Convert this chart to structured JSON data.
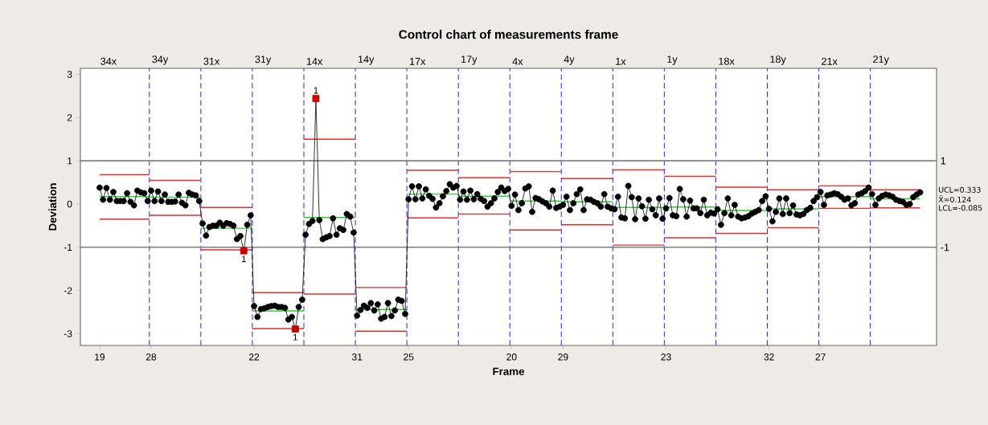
{
  "chart_data": {
    "type": "line",
    "title": "Control chart of measurements frame",
    "xlabel": "Frame",
    "ylabel": "Deviation",
    "categories": [
      "19",
      null,
      null,
      null,
      null,
      null,
      null,
      null,
      null,
      null,
      null,
      null,
      null,
      null,
      null,
      "28",
      null,
      null,
      null,
      null,
      null,
      null,
      null,
      null,
      null,
      null,
      null,
      null,
      null,
      null,
      null,
      null,
      null,
      null,
      null,
      null,
      null,
      null,
      null,
      null,
      null,
      null,
      null,
      null,
      null,
      "22",
      null,
      null,
      null,
      null,
      null,
      null,
      null,
      null,
      null,
      null,
      null,
      null,
      null,
      null,
      null,
      null,
      null,
      null,
      null,
      null,
      null,
      null,
      null,
      null,
      null,
      null,
      null,
      null,
      null,
      "31",
      null,
      null,
      null,
      null,
      null,
      null,
      null,
      null,
      null,
      null,
      null,
      null,
      null,
      null,
      "25",
      null,
      null,
      null,
      null,
      null,
      null,
      null,
      null,
      null,
      null,
      null,
      null,
      null,
      null,
      null,
      null,
      null,
      null,
      null,
      null,
      null,
      null,
      null,
      null,
      null,
      null,
      null,
      null,
      null,
      "20",
      null,
      null,
      null,
      null,
      null,
      null,
      null,
      null,
      null,
      null,
      null,
      null,
      null,
      null,
      "29",
      null,
      null,
      null,
      null,
      null,
      null,
      null,
      null,
      null,
      null,
      null,
      null,
      null,
      null,
      null,
      null,
      null,
      null,
      null,
      null,
      null,
      null,
      null,
      null,
      null,
      null,
      null,
      null,
      null,
      "23",
      null,
      null,
      null,
      null,
      null,
      null,
      null,
      null,
      null,
      null,
      null,
      null,
      null,
      null,
      null,
      null,
      null,
      null,
      null,
      null,
      null,
      null,
      null,
      null,
      null,
      null,
      null,
      null,
      null,
      "32",
      null,
      null,
      null,
      null,
      null,
      null,
      null,
      null,
      null,
      null,
      null,
      null,
      null,
      null,
      "27",
      null,
      null,
      null,
      null,
      null,
      null,
      null,
      null,
      null,
      null,
      null,
      null,
      null,
      null,
      null,
      null,
      null,
      null,
      null,
      null,
      null,
      null,
      null,
      null,
      null,
      null,
      null,
      null,
      null
    ],
    "series": [
      {
        "color": "#e03030",
        "marker": "none",
        "values": [
          0.68,
          0.68,
          0.68,
          0.68,
          0.68,
          0.68,
          0.68,
          0.68,
          0.68,
          0.68,
          0.68,
          0.68,
          0.68,
          0.68,
          0.68,
          0.55,
          0.55,
          0.55,
          0.55,
          0.55,
          0.55,
          0.55,
          0.55,
          0.55,
          0.55,
          0.55,
          0.55,
          0.55,
          0.55,
          0.55,
          -0.08,
          -0.08,
          -0.08,
          -0.08,
          -0.08,
          -0.08,
          -0.08,
          -0.08,
          -0.08,
          -0.08,
          -0.08,
          -0.08,
          -0.08,
          -0.08,
          -0.08,
          -2.05,
          -2.05,
          -2.05,
          -2.05,
          -2.05,
          -2.05,
          -2.05,
          -2.05,
          -2.05,
          -2.05,
          -2.05,
          -2.05,
          -2.05,
          -2.05,
          -2.05,
          1.5,
          1.5,
          1.5,
          1.5,
          1.5,
          1.5,
          1.5,
          1.5,
          1.5,
          1.5,
          1.5,
          1.5,
          1.5,
          1.5,
          1.5,
          -1.93,
          -1.93,
          -1.93,
          -1.93,
          -1.93,
          -1.93,
          -1.93,
          -1.93,
          -1.93,
          -1.93,
          -1.93,
          -1.93,
          -1.93,
          -1.93,
          -1.93,
          0.78,
          0.78,
          0.78,
          0.78,
          0.78,
          0.78,
          0.78,
          0.78,
          0.78,
          0.78,
          0.78,
          0.78,
          0.78,
          0.78,
          0.78,
          0.61,
          0.61,
          0.61,
          0.61,
          0.61,
          0.61,
          0.61,
          0.61,
          0.61,
          0.61,
          0.61,
          0.61,
          0.61,
          0.61,
          0.61,
          0.75,
          0.75,
          0.75,
          0.75,
          0.75,
          0.75,
          0.75,
          0.75,
          0.75,
          0.75,
          0.75,
          0.75,
          0.75,
          0.75,
          0.75,
          0.59,
          0.59,
          0.59,
          0.59,
          0.59,
          0.59,
          0.59,
          0.59,
          0.59,
          0.59,
          0.59,
          0.59,
          0.59,
          0.59,
          0.59,
          0.79,
          0.79,
          0.79,
          0.79,
          0.79,
          0.79,
          0.79,
          0.79,
          0.79,
          0.79,
          0.79,
          0.79,
          0.79,
          0.79,
          0.79,
          0.64,
          0.64,
          0.64,
          0.64,
          0.64,
          0.64,
          0.64,
          0.64,
          0.64,
          0.64,
          0.64,
          0.64,
          0.64,
          0.64,
          0.64,
          0.39,
          0.39,
          0.39,
          0.39,
          0.39,
          0.39,
          0.39,
          0.39,
          0.39,
          0.39,
          0.39,
          0.39,
          0.39,
          0.39,
          0.39,
          0.33,
          0.33,
          0.33,
          0.33,
          0.33,
          0.33,
          0.33,
          0.33,
          0.33,
          0.33,
          0.33,
          0.33,
          0.33,
          0.33,
          0.33,
          0.42,
          0.42,
          0.42,
          0.42,
          0.42,
          0.42,
          0.42,
          0.42,
          0.42,
          0.42,
          0.42,
          0.42,
          0.42,
          0.42,
          0.42,
          0.33,
          0.33,
          0.33,
          0.33,
          0.33,
          0.33,
          0.33,
          0.33,
          0.33,
          0.33,
          0.33,
          0.33,
          0.33,
          0.33,
          0.33
        ]
      },
      {
        "color": "#33cc33",
        "marker": "none",
        "values": [
          0.17,
          0.17,
          0.17,
          0.17,
          0.17,
          0.17,
          0.17,
          0.17,
          0.17,
          0.17,
          0.17,
          0.17,
          0.17,
          0.17,
          0.17,
          0.16,
          0.16,
          0.16,
          0.16,
          0.16,
          0.16,
          0.16,
          0.16,
          0.16,
          0.16,
          0.16,
          0.16,
          0.16,
          0.16,
          0.16,
          -0.56,
          -0.56,
          -0.56,
          -0.56,
          -0.56,
          -0.56,
          -0.56,
          -0.56,
          -0.56,
          -0.56,
          -0.56,
          -0.56,
          -0.56,
          -0.56,
          -0.56,
          -2.47,
          -2.47,
          -2.47,
          -2.47,
          -2.47,
          -2.47,
          -2.47,
          -2.47,
          -2.47,
          -2.47,
          -2.47,
          -2.47,
          -2.47,
          -2.47,
          -2.47,
          -0.31,
          -0.31,
          -0.31,
          -0.31,
          -0.31,
          -0.31,
          -0.31,
          -0.31,
          -0.31,
          -0.31,
          -0.31,
          -0.31,
          -0.31,
          -0.31,
          -0.31,
          -2.44,
          -2.44,
          -2.44,
          -2.44,
          -2.44,
          -2.44,
          -2.44,
          -2.44,
          -2.44,
          -2.44,
          -2.44,
          -2.44,
          -2.44,
          -2.44,
          -2.44,
          0.23,
          0.23,
          0.23,
          0.23,
          0.23,
          0.23,
          0.23,
          0.23,
          0.23,
          0.23,
          0.23,
          0.23,
          0.23,
          0.23,
          0.23,
          0.18,
          0.18,
          0.18,
          0.18,
          0.18,
          0.18,
          0.18,
          0.18,
          0.18,
          0.18,
          0.18,
          0.18,
          0.18,
          0.18,
          0.18,
          0.07,
          0.07,
          0.07,
          0.07,
          0.07,
          0.07,
          0.07,
          0.07,
          0.07,
          0.07,
          0.07,
          0.07,
          0.07,
          0.07,
          0.07,
          0.05,
          0.05,
          0.05,
          0.05,
          0.05,
          0.05,
          0.05,
          0.05,
          0.05,
          0.05,
          0.05,
          0.05,
          0.05,
          0.05,
          0.05,
          -0.08,
          -0.08,
          -0.08,
          -0.08,
          -0.08,
          -0.08,
          -0.08,
          -0.08,
          -0.08,
          -0.08,
          -0.08,
          -0.08,
          -0.08,
          -0.08,
          -0.08,
          -0.07,
          -0.07,
          -0.07,
          -0.07,
          -0.07,
          -0.07,
          -0.07,
          -0.07,
          -0.07,
          -0.07,
          -0.07,
          -0.07,
          -0.07,
          -0.07,
          -0.07,
          -0.15,
          -0.15,
          -0.15,
          -0.15,
          -0.15,
          -0.15,
          -0.15,
          -0.15,
          -0.15,
          -0.15,
          -0.15,
          -0.15,
          -0.15,
          -0.15,
          -0.15,
          -0.11,
          -0.11,
          -0.11,
          -0.11,
          -0.11,
          -0.11,
          -0.11,
          -0.11,
          -0.11,
          -0.11,
          -0.11,
          -0.11,
          -0.11,
          -0.11,
          -0.11,
          0.17,
          0.17,
          0.17,
          0.17,
          0.17,
          0.17,
          0.17,
          0.17,
          0.17,
          0.17,
          0.17,
          0.17,
          0.17,
          0.17,
          0.17,
          0.12,
          0.12,
          0.12,
          0.12,
          0.12,
          0.12,
          0.12,
          0.12,
          0.12,
          0.12,
          0.12,
          0.12,
          0.12,
          0.12,
          0.12
        ]
      },
      {
        "color": "#e03030",
        "marker": "none",
        "values": [
          -0.35,
          -0.35,
          -0.35,
          -0.35,
          -0.35,
          -0.35,
          -0.35,
          -0.35,
          -0.35,
          -0.35,
          -0.35,
          -0.35,
          -0.35,
          -0.35,
          -0.35,
          -0.26,
          -0.26,
          -0.26,
          -0.26,
          -0.26,
          -0.26,
          -0.26,
          -0.26,
          -0.26,
          -0.26,
          -0.26,
          -0.26,
          -0.26,
          -0.26,
          -0.26,
          -1.06,
          -1.06,
          -1.06,
          -1.06,
          -1.06,
          -1.06,
          -1.06,
          -1.06,
          -1.06,
          -1.06,
          -1.06,
          -1.06,
          -1.06,
          -1.06,
          -1.06,
          -2.88,
          -2.88,
          -2.88,
          -2.88,
          -2.88,
          -2.88,
          -2.88,
          -2.88,
          -2.88,
          -2.88,
          -2.88,
          -2.88,
          -2.88,
          -2.88,
          -2.88,
          -2.08,
          -2.08,
          -2.08,
          -2.08,
          -2.08,
          -2.08,
          -2.08,
          -2.08,
          -2.08,
          -2.08,
          -2.08,
          -2.08,
          -2.08,
          -2.08,
          -2.08,
          -2.94,
          -2.94,
          -2.94,
          -2.94,
          -2.94,
          -2.94,
          -2.94,
          -2.94,
          -2.94,
          -2.94,
          -2.94,
          -2.94,
          -2.94,
          -2.94,
          -2.94,
          -0.32,
          -0.32,
          -0.32,
          -0.32,
          -0.32,
          -0.32,
          -0.32,
          -0.32,
          -0.32,
          -0.32,
          -0.32,
          -0.32,
          -0.32,
          -0.32,
          -0.32,
          -0.23,
          -0.23,
          -0.23,
          -0.23,
          -0.23,
          -0.23,
          -0.23,
          -0.23,
          -0.23,
          -0.23,
          -0.23,
          -0.23,
          -0.23,
          -0.23,
          -0.23,
          -0.6,
          -0.6,
          -0.6,
          -0.6,
          -0.6,
          -0.6,
          -0.6,
          -0.6,
          -0.6,
          -0.6,
          -0.6,
          -0.6,
          -0.6,
          -0.6,
          -0.6,
          -0.48,
          -0.48,
          -0.48,
          -0.48,
          -0.48,
          -0.48,
          -0.48,
          -0.48,
          -0.48,
          -0.48,
          -0.48,
          -0.48,
          -0.48,
          -0.48,
          -0.48,
          -0.95,
          -0.95,
          -0.95,
          -0.95,
          -0.95,
          -0.95,
          -0.95,
          -0.95,
          -0.95,
          -0.95,
          -0.95,
          -0.95,
          -0.95,
          -0.95,
          -0.95,
          -0.78,
          -0.78,
          -0.78,
          -0.78,
          -0.78,
          -0.78,
          -0.78,
          -0.78,
          -0.78,
          -0.78,
          -0.78,
          -0.78,
          -0.78,
          -0.78,
          -0.78,
          -0.68,
          -0.68,
          -0.68,
          -0.68,
          -0.68,
          -0.68,
          -0.68,
          -0.68,
          -0.68,
          -0.68,
          -0.68,
          -0.68,
          -0.68,
          -0.68,
          -0.68,
          -0.55,
          -0.55,
          -0.55,
          -0.55,
          -0.55,
          -0.55,
          -0.55,
          -0.55,
          -0.55,
          -0.55,
          -0.55,
          -0.55,
          -0.55,
          -0.55,
          -0.55,
          -0.1,
          -0.1,
          -0.1,
          -0.1,
          -0.1,
          -0.1,
          -0.1,
          -0.1,
          -0.1,
          -0.1,
          -0.1,
          -0.1,
          -0.1,
          -0.1,
          -0.1,
          -0.09,
          -0.09,
          -0.09,
          -0.09,
          -0.09,
          -0.09,
          -0.09,
          -0.09,
          -0.09,
          -0.09,
          -0.09,
          -0.09,
          -0.09,
          -0.09,
          -0.09
        ]
      },
      {
        "color": "#000000",
        "marker": "circle",
        "values": [
          0.38,
          0.1,
          0.37,
          0.1,
          0.28,
          0.07,
          0.07,
          0.07,
          0.25,
          0.05,
          -0.03,
          0.31,
          0.27,
          0.25,
          0.07,
          0.31,
          0.07,
          0.29,
          0.07,
          0.22,
          0.05,
          0.05,
          0.06,
          0.22,
          0.03,
          -0.03,
          0.26,
          0.22,
          0.2,
          0.07,
          -0.45,
          -0.73,
          -0.53,
          -0.5,
          -0.5,
          -0.43,
          -0.5,
          -0.44,
          -0.46,
          -0.5,
          -0.81,
          -0.74,
          -1.08,
          -0.48,
          -0.26,
          -2.36,
          -2.61,
          -2.43,
          -2.41,
          -2.38,
          -2.36,
          -2.35,
          -2.38,
          -2.38,
          -2.4,
          -2.67,
          -2.61,
          -2.89,
          -2.38,
          -2.21,
          -0.71,
          -0.46,
          -0.39,
          2.44,
          -0.37,
          -0.81,
          -0.77,
          -0.74,
          -0.33,
          -0.71,
          -0.56,
          -0.6,
          -0.23,
          -0.29,
          -0.66,
          -2.58,
          -2.45,
          -2.35,
          -2.4,
          -2.29,
          -2.46,
          -2.32,
          -2.65,
          -2.61,
          -2.29,
          -2.59,
          -2.46,
          -2.21,
          -2.24,
          -2.54,
          0.11,
          0.41,
          0.11,
          0.41,
          0.13,
          0.34,
          0.19,
          0.12,
          -0.08,
          0.02,
          0.18,
          0.3,
          0.46,
          0.38,
          0.42,
          0.1,
          0.29,
          0.1,
          0.31,
          0.11,
          0.23,
          0.12,
          0.07,
          -0.06,
          0.02,
          0.13,
          0.28,
          0.38,
          0.3,
          0.35,
          -0.04,
          0.22,
          -0.14,
          0.02,
          0.36,
          0.41,
          -0.18,
          0.14,
          0.11,
          0.06,
          0.02,
          -0.06,
          0.31,
          -0.09,
          -0.06,
          -0.02,
          0.17,
          -0.14,
          0.02,
          0.23,
          0.34,
          -0.14,
          0.11,
          0.1,
          0.05,
          0.02,
          -0.06,
          0.23,
          -0.06,
          -0.1,
          -0.12,
          0.17,
          -0.31,
          -0.33,
          0.42,
          0.16,
          -0.35,
          0.13,
          -0.05,
          -0.34,
          0.1,
          -0.12,
          -0.26,
          0.13,
          -0.34,
          -0.1,
          0.14,
          -0.26,
          -0.28,
          0.35,
          0.11,
          -0.29,
          0.08,
          -0.1,
          -0.1,
          -0.21,
          0.1,
          -0.26,
          -0.2,
          -0.22,
          -0.12,
          -0.48,
          -0.21,
          0.13,
          -0.26,
          -0.02,
          -0.29,
          -0.33,
          -0.31,
          -0.28,
          -0.22,
          -0.18,
          -0.14,
          0.07,
          0.18,
          -0.11,
          -0.4,
          -0.18,
          0.13,
          -0.23,
          0.13,
          -0.21,
          -0.03,
          -0.24,
          -0.26,
          -0.23,
          -0.14,
          -0.09,
          0.07,
          0.16,
          0.28,
          -0.02,
          0.2,
          0.22,
          0.25,
          0.23,
          0.17,
          0.1,
          0.13,
          -0.03,
          0.02,
          0.22,
          0.25,
          0.3,
          0.38,
          0.23,
          -0.02,
          0.13,
          0.19,
          0.22,
          0.2,
          0.17,
          0.1,
          0.07,
          0.05,
          -0.02,
          0.0,
          0.16,
          0.22,
          0.27
        ]
      },
      {
        "type": "scatter",
        "color": "#cc0000",
        "marker": "square",
        "values": [
          null,
          null,
          null,
          null,
          null,
          null,
          null,
          null,
          null,
          null,
          null,
          null,
          null,
          null,
          null,
          null,
          null,
          null,
          null,
          null,
          null,
          null,
          null,
          null,
          null,
          null,
          null,
          null,
          null,
          null,
          null,
          null,
          null,
          null,
          null,
          null,
          null,
          null,
          null,
          null,
          null,
          null,
          -1.08,
          null,
          null,
          null,
          null,
          null,
          null,
          null,
          null,
          null,
          null,
          null,
          null,
          null,
          null,
          -2.89,
          null,
          null,
          null,
          null,
          null,
          2.44,
          null,
          null,
          null,
          null,
          null,
          null,
          null,
          null,
          null,
          null,
          null,
          null,
          null,
          null,
          null,
          null,
          null,
          null,
          null,
          null,
          null,
          null,
          null,
          null,
          null,
          null,
          null,
          null,
          null,
          null,
          null,
          null,
          null,
          null,
          null,
          null,
          null,
          null,
          null,
          null,
          null,
          null,
          null,
          null,
          null,
          null,
          null,
          null,
          null,
          null,
          null,
          null,
          null,
          null,
          null,
          null,
          null,
          null,
          null,
          null,
          null,
          null,
          null,
          null,
          null,
          null,
          null,
          null,
          null,
          null,
          null,
          null,
          null,
          null,
          null,
          null,
          null,
          null,
          null,
          null,
          null,
          null,
          null,
          null,
          null,
          null,
          null,
          null,
          null,
          null,
          null,
          null,
          null,
          null,
          null,
          null,
          null,
          null,
          null,
          null,
          null,
          null,
          null,
          null,
          null,
          null,
          null,
          null,
          null,
          null,
          null,
          null,
          null,
          null,
          null,
          null,
          null,
          null,
          null,
          null,
          null,
          null,
          null,
          null,
          null,
          null,
          null,
          null,
          null,
          null,
          null,
          null,
          null,
          null,
          null,
          null,
          null,
          null,
          null,
          null,
          null,
          null,
          null,
          null,
          null,
          null,
          null,
          null,
          null,
          null,
          null,
          null,
          null,
          null,
          null,
          null,
          null,
          null,
          null,
          null,
          null,
          null,
          null,
          null,
          null,
          null,
          null,
          null,
          null,
          null,
          null,
          null,
          null,
          null,
          null,
          null
        ]
      }
    ],
    "ylim": [
      -3.27,
      3.14
    ],
    "yticks": [
      -3,
      -2,
      -1,
      0,
      1,
      2,
      3
    ],
    "ref_lines": [
      {
        "axis": "y",
        "value": 1,
        "label": "1",
        "color": "#808080"
      },
      {
        "axis": "y",
        "value": -1,
        "label": "-1",
        "color": "#808080"
      }
    ],
    "annotations": [
      "34x",
      "34y",
      "31x",
      "31y",
      "14x",
      "14y",
      "17x",
      "17y",
      "4x",
      "4y",
      "1x",
      "1y",
      "18x",
      "18y",
      "21x",
      "21y",
      "1",
      "1",
      "1",
      "UCL=0.333",
      "X̄=0.124",
      "LCL=-0.085"
    ]
  }
}
